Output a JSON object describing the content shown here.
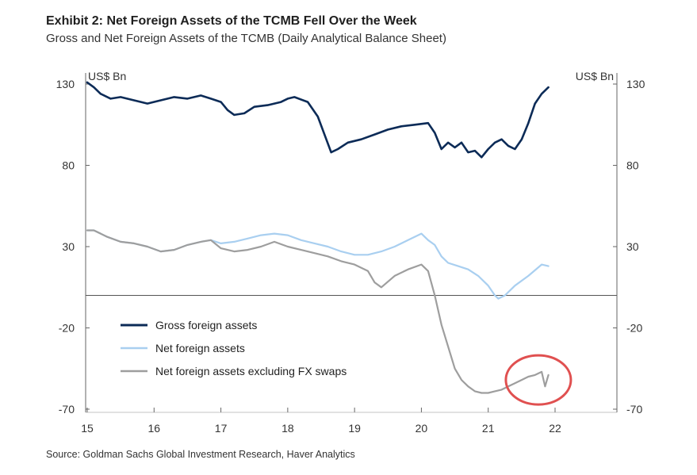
{
  "header": {
    "title": "Exhibit 2: Net Foreign Assets of the TCMB Fell Over the Week",
    "subtitle": "Gross and Net Foreign Assets of the TCMB (Daily Analytical Balance Sheet)"
  },
  "source": "Source: Goldman Sachs Global Investment Research, Haver Analytics",
  "chart_data": {
    "type": "line",
    "title": "Exhibit 2: Net Foreign Assets of the TCMB Fell Over the Week",
    "subtitle": "Gross and Net Foreign Assets of the TCMB (Daily Analytical Balance Sheet)",
    "y_unit_left": "US$ Bn",
    "y_unit_right": "US$ Bn",
    "xlim": [
      15,
      22
    ],
    "ylim": [
      -70,
      130
    ],
    "x_ticks": [
      15,
      16,
      17,
      18,
      19,
      20,
      21,
      22
    ],
    "x_tick_labels": [
      "15",
      "16",
      "17",
      "18",
      "19",
      "20",
      "21",
      "22"
    ],
    "y_ticks": [
      130,
      80,
      30,
      -20,
      -70
    ],
    "y_tick_labels": [
      "130",
      "80",
      "30",
      "-20",
      "-70"
    ],
    "legend_position": "lower-left",
    "grid": false,
    "highlight": {
      "shape": "ellipse",
      "color": "#e05050",
      "center": [
        21.75,
        -52
      ]
    },
    "series": [
      {
        "name": "Gross foreign assets",
        "color": "#0c2b57",
        "x": [
          15.0,
          15.1,
          15.2,
          15.35,
          15.5,
          15.7,
          15.9,
          16.1,
          16.3,
          16.5,
          16.7,
          16.85,
          17.0,
          17.1,
          17.2,
          17.35,
          17.5,
          17.7,
          17.9,
          18.0,
          18.1,
          18.3,
          18.45,
          18.55,
          18.65,
          18.75,
          18.9,
          19.1,
          19.3,
          19.5,
          19.7,
          19.9,
          20.1,
          20.2,
          20.3,
          20.4,
          20.5,
          20.6,
          20.7,
          20.8,
          20.9,
          21.0,
          21.1,
          21.2,
          21.3,
          21.4,
          21.5,
          21.6,
          21.7,
          21.8,
          21.9
        ],
        "values": [
          131,
          128,
          124,
          121,
          122,
          120,
          118,
          120,
          122,
          121,
          123,
          121,
          119,
          114,
          111,
          112,
          116,
          117,
          119,
          121,
          122,
          119,
          110,
          99,
          88,
          90,
          94,
          96,
          99,
          102,
          104,
          105,
          106,
          100,
          90,
          94,
          91,
          94,
          88,
          89,
          85,
          90,
          94,
          96,
          92,
          90,
          96,
          106,
          118,
          124,
          128
        ]
      },
      {
        "name": "Net foreign assets",
        "color": "#a9cff0",
        "x": [
          15.0,
          15.1,
          15.3,
          15.5,
          15.7,
          15.9,
          16.1,
          16.3,
          16.5,
          16.7,
          16.85,
          17.0,
          17.2,
          17.4,
          17.6,
          17.8,
          18.0,
          18.2,
          18.4,
          18.6,
          18.8,
          19.0,
          19.2,
          19.4,
          19.6,
          19.8,
          20.0,
          20.1,
          20.2,
          20.3,
          20.4,
          20.55,
          20.7,
          20.85,
          21.0,
          21.1,
          21.15,
          21.25,
          21.4,
          21.6,
          21.8,
          21.9
        ],
        "values": [
          40,
          40,
          36,
          33,
          32,
          30,
          27,
          28,
          31,
          33,
          34,
          32,
          33,
          35,
          37,
          38,
          37,
          34,
          32,
          30,
          27,
          25,
          25,
          27,
          30,
          34,
          38,
          34,
          31,
          24,
          20,
          18,
          16,
          12,
          6,
          0,
          -2,
          0,
          6,
          12,
          19,
          18
        ]
      },
      {
        "name": "Net foreign assets excluding FX swaps",
        "color": "#9e9e9e",
        "x": [
          15.0,
          15.1,
          15.3,
          15.5,
          15.7,
          15.9,
          16.1,
          16.3,
          16.5,
          16.7,
          16.85,
          17.0,
          17.2,
          17.4,
          17.6,
          17.8,
          18.0,
          18.2,
          18.4,
          18.6,
          18.8,
          19.0,
          19.2,
          19.3,
          19.4,
          19.6,
          19.8,
          20.0,
          20.1,
          20.2,
          20.3,
          20.5,
          20.6,
          20.7,
          20.8,
          20.9,
          21.0,
          21.1,
          21.2,
          21.3,
          21.4,
          21.5,
          21.6,
          21.7,
          21.8,
          21.85,
          21.9
        ],
        "values": [
          40,
          40,
          36,
          33,
          32,
          30,
          27,
          28,
          31,
          33,
          34,
          29,
          27,
          28,
          30,
          33,
          30,
          28,
          26,
          24,
          21,
          19,
          15,
          8,
          5,
          12,
          16,
          19,
          15,
          0,
          -18,
          -45,
          -52,
          -56,
          -59,
          -60,
          -60,
          -59,
          -58,
          -56,
          -54,
          -52,
          -50,
          -49,
          -47,
          -56,
          -49
        ]
      }
    ]
  }
}
